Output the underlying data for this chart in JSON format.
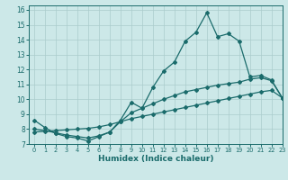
{
  "title": "",
  "xlabel": "Humidex (Indice chaleur)",
  "xlim": [
    -0.5,
    23
  ],
  "ylim": [
    7,
    16.3
  ],
  "yticks": [
    7,
    8,
    9,
    10,
    11,
    12,
    13,
    14,
    15,
    16
  ],
  "xticks": [
    0,
    1,
    2,
    3,
    4,
    5,
    6,
    7,
    8,
    9,
    10,
    11,
    12,
    13,
    14,
    15,
    16,
    17,
    18,
    19,
    20,
    21,
    22,
    23
  ],
  "background_color": "#cce8e8",
  "grid_color": "#aacccc",
  "line_color": "#1a6b6b",
  "line1_x": [
    0,
    1,
    2,
    3,
    4,
    5,
    6,
    7,
    8,
    9,
    10,
    11,
    12,
    13,
    14,
    15,
    16,
    17,
    18,
    19,
    20,
    21,
    22,
    23
  ],
  "line1_y": [
    8.6,
    8.1,
    7.7,
    7.5,
    7.4,
    7.2,
    7.5,
    7.8,
    8.6,
    9.8,
    9.4,
    10.8,
    11.9,
    12.5,
    13.9,
    14.5,
    15.8,
    14.2,
    14.4,
    13.9,
    11.5,
    11.6,
    11.3,
    10.1
  ],
  "line2_x": [
    0,
    1,
    2,
    3,
    4,
    5,
    6,
    7,
    8,
    9,
    10,
    11,
    12,
    13,
    14,
    15,
    16,
    17,
    18,
    19,
    20,
    21,
    22,
    23
  ],
  "line2_y": [
    8.0,
    7.9,
    7.75,
    7.6,
    7.5,
    7.4,
    7.55,
    7.8,
    8.5,
    9.1,
    9.4,
    9.7,
    10.0,
    10.25,
    10.5,
    10.65,
    10.8,
    10.95,
    11.05,
    11.15,
    11.35,
    11.45,
    11.25,
    10.1
  ],
  "line3_x": [
    0,
    1,
    2,
    3,
    4,
    5,
    6,
    7,
    8,
    9,
    10,
    11,
    12,
    13,
    14,
    15,
    16,
    17,
    18,
    19,
    20,
    21,
    22,
    23
  ],
  "line3_y": [
    7.8,
    7.85,
    7.9,
    7.95,
    8.0,
    8.05,
    8.15,
    8.3,
    8.5,
    8.7,
    8.85,
    9.0,
    9.15,
    9.3,
    9.45,
    9.6,
    9.75,
    9.9,
    10.05,
    10.2,
    10.35,
    10.5,
    10.6,
    10.1
  ]
}
